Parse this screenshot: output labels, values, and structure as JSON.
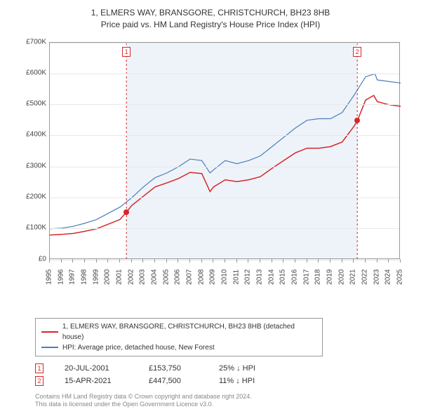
{
  "title_line1": "1, ELMERS WAY, BRANSGORE, CHRISTCHURCH, BH23 8HB",
  "title_line2": "Price paid vs. HM Land Registry's House Price Index (HPI)",
  "chart": {
    "type": "line",
    "background_color": "#ffffff",
    "grid_color": "#e8e8e8",
    "border_color": "#999999",
    "x_years": [
      1995,
      1996,
      1997,
      1998,
      1999,
      2000,
      2001,
      2002,
      2003,
      2004,
      2005,
      2006,
      2007,
      2008,
      2009,
      2010,
      2011,
      2012,
      2013,
      2014,
      2015,
      2016,
      2017,
      2018,
      2019,
      2020,
      2021,
      2022,
      2023,
      2024,
      2025
    ],
    "y_min": 0,
    "y_max": 700000,
    "y_step": 100000,
    "y_format_prefix": "£",
    "y_format_suffix": "K",
    "y_format_divisor": 1000,
    "shade_from_year": 2001.55,
    "shade_to_year": 2021.29,
    "shade_color": "#eef3f9",
    "series": [
      {
        "name": "property",
        "label": "1, ELMERS WAY, BRANSGORE, CHRISTCHURCH, BH23 8HB (detached house)",
        "color": "#d62728",
        "line_width": 1.5,
        "data": [
          [
            1995,
            80000
          ],
          [
            1996,
            82000
          ],
          [
            1997,
            85000
          ],
          [
            1998,
            92000
          ],
          [
            1999,
            100000
          ],
          [
            2000,
            115000
          ],
          [
            2001,
            130000
          ],
          [
            2001.55,
            153750
          ],
          [
            2002,
            175000
          ],
          [
            2003,
            205000
          ],
          [
            2004,
            235000
          ],
          [
            2005,
            248000
          ],
          [
            2006,
            262000
          ],
          [
            2007,
            282000
          ],
          [
            2008,
            278000
          ],
          [
            2008.7,
            220000
          ],
          [
            2009,
            235000
          ],
          [
            2010,
            258000
          ],
          [
            2011,
            252000
          ],
          [
            2012,
            258000
          ],
          [
            2013,
            268000
          ],
          [
            2014,
            295000
          ],
          [
            2015,
            320000
          ],
          [
            2016,
            345000
          ],
          [
            2017,
            360000
          ],
          [
            2018,
            360000
          ],
          [
            2019,
            365000
          ],
          [
            2020,
            380000
          ],
          [
            2021,
            430000
          ],
          [
            2021.29,
            447500
          ],
          [
            2022,
            515000
          ],
          [
            2022.7,
            530000
          ],
          [
            2023,
            510000
          ],
          [
            2024,
            500000
          ],
          [
            2025,
            495000
          ]
        ]
      },
      {
        "name": "hpi",
        "label": "HPI: Average price, detached house, New Forest",
        "color": "#4a7ebb",
        "line_width": 1.2,
        "data": [
          [
            1995,
            100000
          ],
          [
            1996,
            102000
          ],
          [
            1997,
            108000
          ],
          [
            1998,
            118000
          ],
          [
            1999,
            130000
          ],
          [
            2000,
            150000
          ],
          [
            2001,
            170000
          ],
          [
            2002,
            200000
          ],
          [
            2003,
            235000
          ],
          [
            2004,
            265000
          ],
          [
            2005,
            280000
          ],
          [
            2006,
            300000
          ],
          [
            2007,
            325000
          ],
          [
            2008,
            320000
          ],
          [
            2008.7,
            280000
          ],
          [
            2009,
            290000
          ],
          [
            2010,
            320000
          ],
          [
            2011,
            310000
          ],
          [
            2012,
            320000
          ],
          [
            2013,
            335000
          ],
          [
            2014,
            365000
          ],
          [
            2015,
            395000
          ],
          [
            2016,
            425000
          ],
          [
            2017,
            450000
          ],
          [
            2018,
            455000
          ],
          [
            2019,
            455000
          ],
          [
            2020,
            475000
          ],
          [
            2021,
            530000
          ],
          [
            2022,
            590000
          ],
          [
            2022.8,
            600000
          ],
          [
            2023,
            580000
          ],
          [
            2024,
            575000
          ],
          [
            2025,
            570000
          ]
        ]
      }
    ],
    "markers": [
      {
        "n": "1",
        "year": 2001.55,
        "price": 153750,
        "color": "#d62728",
        "dash_color": "#d62728"
      },
      {
        "n": "2",
        "year": 2021.29,
        "price": 447500,
        "color": "#d62728",
        "dash_color": "#d62728"
      }
    ]
  },
  "legend": {
    "items": [
      {
        "color": "#d62728",
        "label": "1, ELMERS WAY, BRANSGORE, CHRISTCHURCH, BH23 8HB (detached house)"
      },
      {
        "color": "#4a7ebb",
        "label": "HPI: Average price, detached house, New Forest"
      }
    ]
  },
  "transactions": [
    {
      "n": "1",
      "color": "#d62728",
      "date": "20-JUL-2001",
      "price": "£153,750",
      "pct": "25%",
      "arrow": "↓",
      "vs": "HPI"
    },
    {
      "n": "2",
      "color": "#d62728",
      "date": "15-APR-2021",
      "price": "£447,500",
      "pct": "11%",
      "arrow": "↓",
      "vs": "HPI"
    }
  ],
  "footer_line1": "Contains HM Land Registry data © Crown copyright and database right 2024.",
  "footer_line2": "This data is licensed under the Open Government Licence v3.0."
}
